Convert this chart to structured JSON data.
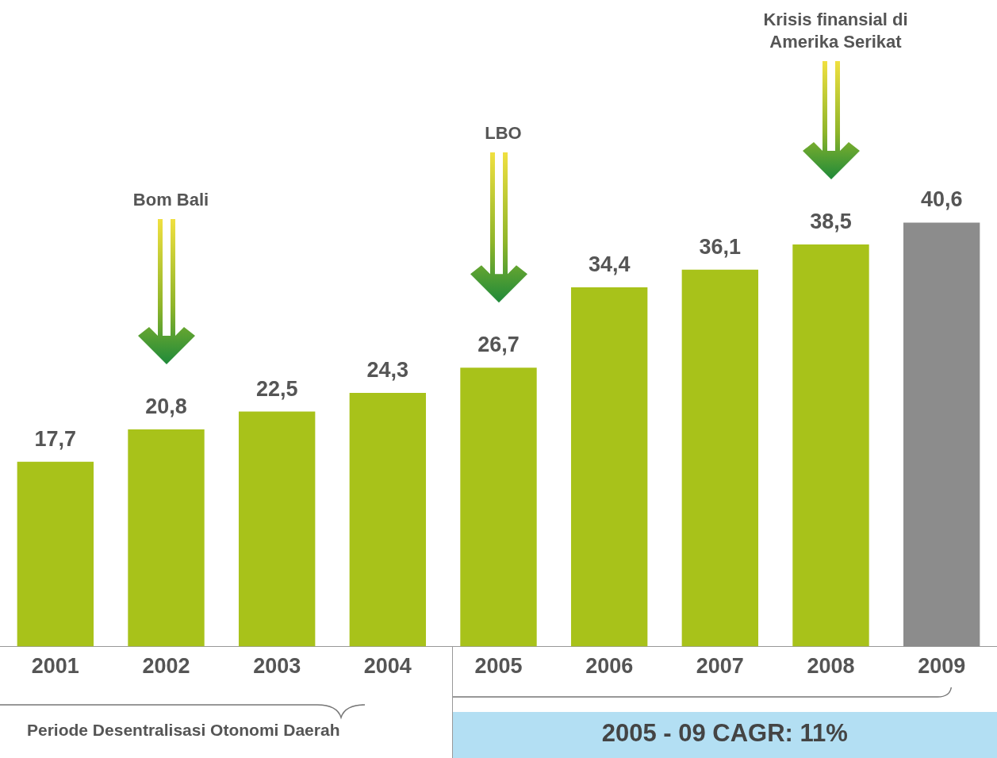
{
  "chart_data": {
    "type": "bar",
    "categories": [
      "2001",
      "2002",
      "2003",
      "2004",
      "2005",
      "2006",
      "2007",
      "2008",
      "2009"
    ],
    "values": [
      17.7,
      20.8,
      22.5,
      24.3,
      26.7,
      34.4,
      36.1,
      38.5,
      40.6
    ],
    "value_labels": [
      "17,7",
      "20,8",
      "22,5",
      "24,3",
      "26,7",
      "34,4",
      "36,1",
      "38,5",
      "40,6"
    ],
    "colors": [
      "#a8c21a",
      "#a8c21a",
      "#a8c21a",
      "#a8c21a",
      "#a8c21a",
      "#a8c21a",
      "#a8c21a",
      "#a8c21a",
      "#8c8c8c"
    ],
    "grid": false,
    "legend": false,
    "annotations": [
      "Bom Bali",
      "LBO",
      "Krisis finansial di Amerika Serikat",
      "Periode Desentralisasi Otonomi Daerah",
      "2005 - 09 CAGR: 11%"
    ]
  }
}
